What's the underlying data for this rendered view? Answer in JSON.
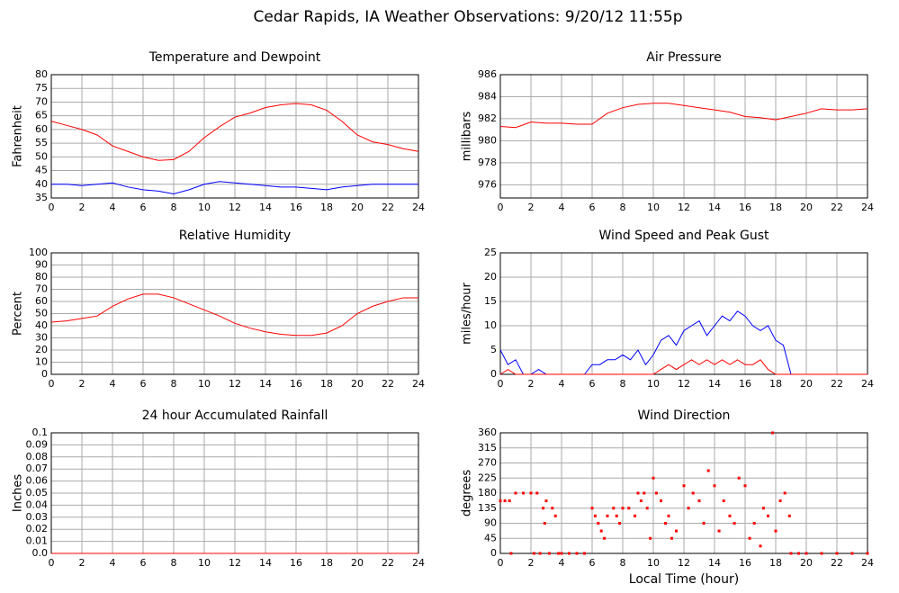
{
  "title": "Cedar Rapids, IA Weather Observations: 9/20/12 11:55p",
  "chart_data": [
    {
      "type": "line",
      "title": "Temperature and Dewpoint",
      "ylabel": "Fahrenheit",
      "x": [
        0,
        1,
        2,
        3,
        4,
        5,
        6,
        7,
        8,
        9,
        10,
        11,
        12,
        13,
        14,
        15,
        16,
        17,
        18,
        19,
        20,
        21,
        22,
        23,
        24
      ],
      "series": [
        {
          "name": "Temperature",
          "color": "#ff0000",
          "values": [
            63,
            61.5,
            60,
            58,
            54,
            52,
            50,
            48.7,
            49,
            52,
            57,
            61,
            64.5,
            66,
            68,
            69,
            69.5,
            69,
            67,
            63,
            58,
            55.5,
            54.5,
            53,
            52
          ]
        },
        {
          "name": "Dewpoint",
          "color": "#0000ff",
          "values": [
            40,
            40,
            39.5,
            40,
            40.5,
            39,
            38,
            37.5,
            36.5,
            38,
            40,
            41,
            40.5,
            40,
            39.5,
            39,
            39,
            38.5,
            38,
            39,
            39.5,
            40,
            40,
            40,
            40
          ]
        }
      ],
      "xlim": [
        0,
        24
      ],
      "xticks": [
        0,
        2,
        4,
        6,
        8,
        10,
        12,
        14,
        16,
        18,
        20,
        22,
        24
      ],
      "ylim": [
        35,
        80
      ],
      "yticks": [
        35,
        40,
        45,
        50,
        55,
        60,
        65,
        70,
        75,
        80
      ],
      "grid": true
    },
    {
      "type": "line",
      "title": "Air Pressure",
      "ylabel": "millibars",
      "x": [
        0,
        1,
        2,
        3,
        4,
        5,
        6,
        7,
        8,
        9,
        10,
        11,
        12,
        13,
        14,
        15,
        16,
        17,
        18,
        19,
        20,
        21,
        22,
        23,
        24
      ],
      "series": [
        {
          "name": "Pressure",
          "color": "#ff0000",
          "values": [
            981.3,
            981.2,
            981.7,
            981.6,
            981.6,
            981.5,
            981.5,
            982.5,
            983.0,
            983.3,
            983.4,
            983.4,
            983.2,
            983.0,
            982.8,
            982.6,
            982.2,
            982.1,
            981.9,
            982.2,
            982.5,
            982.9,
            982.8,
            982.8,
            982.9
          ]
        }
      ],
      "xlim": [
        0,
        24
      ],
      "xticks": [
        0,
        2,
        4,
        6,
        8,
        10,
        12,
        14,
        16,
        18,
        20,
        22,
        24
      ],
      "ylim": [
        974.8,
        986
      ],
      "yticks": [
        976,
        978,
        980,
        982,
        984,
        986
      ],
      "grid": true
    },
    {
      "type": "line",
      "title": "Relative Humidity",
      "ylabel": "Percent",
      "x": [
        0,
        1,
        2,
        3,
        4,
        5,
        6,
        7,
        8,
        9,
        10,
        11,
        12,
        13,
        14,
        15,
        16,
        17,
        18,
        19,
        20,
        21,
        22,
        23,
        24
      ],
      "series": [
        {
          "name": "Humidity",
          "color": "#ff0000",
          "values": [
            43,
            44,
            46,
            48,
            56,
            62,
            66,
            66,
            63,
            58,
            53,
            48,
            42,
            38,
            35,
            33,
            32,
            32,
            34,
            40,
            50,
            56,
            60,
            63,
            63
          ]
        }
      ],
      "xlim": [
        0,
        24
      ],
      "xticks": [
        0,
        2,
        4,
        6,
        8,
        10,
        12,
        14,
        16,
        18,
        20,
        22,
        24
      ],
      "ylim": [
        0,
        100
      ],
      "yticks": [
        0,
        10,
        20,
        30,
        40,
        50,
        60,
        70,
        80,
        90,
        100
      ],
      "grid": true
    },
    {
      "type": "line",
      "title": "Wind Speed and Peak Gust",
      "ylabel": "miles/hour",
      "x": [
        0,
        0.5,
        1,
        1.5,
        2,
        2.5,
        3,
        3.5,
        4,
        4.5,
        5,
        5.5,
        6,
        6.5,
        7,
        7.5,
        8,
        8.5,
        9,
        9.5,
        10,
        10.5,
        11,
        11.5,
        12,
        12.5,
        13,
        13.5,
        14,
        14.5,
        15,
        15.5,
        16,
        16.5,
        17,
        17.5,
        18,
        18.5,
        19,
        19.5,
        20,
        20.5,
        21,
        21.5,
        22,
        22.5,
        23,
        23.5,
        24
      ],
      "series": [
        {
          "name": "Wind Speed",
          "color": "#0000ff",
          "values": [
            5,
            2,
            3,
            0,
            0,
            1,
            0,
            0,
            0,
            0,
            0,
            0,
            2,
            2,
            3,
            3,
            4,
            3,
            5,
            2,
            4,
            7,
            8,
            6,
            9,
            10,
            11,
            8,
            10,
            12,
            11,
            13,
            12,
            10,
            9,
            10,
            7,
            6,
            0,
            0,
            0,
            0,
            0,
            0,
            0,
            0,
            0,
            0,
            0
          ]
        },
        {
          "name": "Peak Gust",
          "color": "#ff0000",
          "values": [
            0,
            1,
            0,
            0,
            0,
            0,
            0,
            0,
            0,
            0,
            0,
            0,
            0,
            0,
            0,
            0,
            0,
            0,
            0,
            0,
            0,
            1,
            2,
            1,
            2,
            3,
            2,
            3,
            2,
            3,
            2,
            3,
            2,
            2,
            3,
            1,
            0,
            0,
            0,
            0,
            0,
            0,
            0,
            0,
            0,
            0,
            0,
            0,
            0
          ]
        }
      ],
      "xlim": [
        0,
        24
      ],
      "xticks": [
        0,
        2,
        4,
        6,
        8,
        10,
        12,
        14,
        16,
        18,
        20,
        22,
        24
      ],
      "ylim": [
        0,
        25
      ],
      "yticks": [
        0,
        5,
        10,
        15,
        20,
        25
      ],
      "grid": true
    },
    {
      "type": "line",
      "title": "24 hour Accumulated Rainfall",
      "ylabel": "Inches",
      "x": [
        0,
        24
      ],
      "series": [
        {
          "name": "Rainfall",
          "color": "#ff0000",
          "values": [
            0,
            0
          ]
        }
      ],
      "xlim": [
        0,
        24
      ],
      "xticks": [
        0,
        2,
        4,
        6,
        8,
        10,
        12,
        14,
        16,
        18,
        20,
        22,
        24
      ],
      "ylim": [
        0,
        0.1
      ],
      "yticks": [
        {
          "value": 0,
          "label": "0.0"
        },
        0.01,
        0.02,
        0.03,
        0.04,
        0.05,
        0.06,
        0.07,
        0.08,
        0.09,
        0.1
      ],
      "grid": true
    },
    {
      "type": "scatter",
      "title": "Wind Direction",
      "ylabel": "degrees",
      "xlabel": "Local Time (hour)",
      "x": [
        0,
        0.3,
        0.6,
        0.7,
        1,
        1.5,
        2,
        2.2,
        2.4,
        2.6,
        2.8,
        2.9,
        3,
        3.2,
        3.4,
        3.6,
        3.8,
        4,
        4.5,
        5,
        5.5,
        6,
        6.2,
        6.4,
        6.6,
        6.8,
        7,
        7.4,
        7.6,
        7.8,
        8,
        8.4,
        8.8,
        9,
        9.2,
        9.4,
        9.6,
        9.8,
        10,
        10.2,
        10.5,
        10.8,
        11,
        11.2,
        11.5,
        12,
        12.3,
        12.6,
        13,
        13.3,
        13.6,
        14,
        14.3,
        14.6,
        15,
        15.3,
        15.6,
        16,
        16.3,
        16.6,
        17,
        17.2,
        17.5,
        17.8,
        18,
        18.3,
        18.6,
        18.9,
        19,
        19.5,
        20,
        21,
        22,
        23,
        24
      ],
      "series": [
        {
          "name": "Direction",
          "color": "#ff0000",
          "values": [
            157,
            157,
            157,
            0,
            180,
            180,
            180,
            0,
            180,
            0,
            135,
            90,
            157,
            0,
            135,
            112,
            0,
            0,
            0,
            0,
            0,
            135,
            112,
            90,
            67,
            45,
            112,
            135,
            112,
            90,
            135,
            135,
            112,
            180,
            157,
            180,
            135,
            45,
            225,
            180,
            157,
            90,
            112,
            45,
            67,
            202,
            135,
            180,
            157,
            90,
            247,
            202,
            67,
            157,
            112,
            90,
            225,
            202,
            45,
            90,
            22,
            135,
            112,
            360,
            67,
            157,
            180,
            112,
            0,
            0,
            0,
            0,
            0,
            0,
            0
          ]
        }
      ],
      "xlim": [
        0,
        24
      ],
      "xticks": [
        0,
        2,
        4,
        6,
        8,
        10,
        12,
        14,
        16,
        18,
        20,
        22,
        24
      ],
      "ylim": [
        0,
        360
      ],
      "yticks": [
        0,
        45,
        90,
        135,
        180,
        225,
        270,
        315,
        360
      ],
      "grid": true
    }
  ]
}
